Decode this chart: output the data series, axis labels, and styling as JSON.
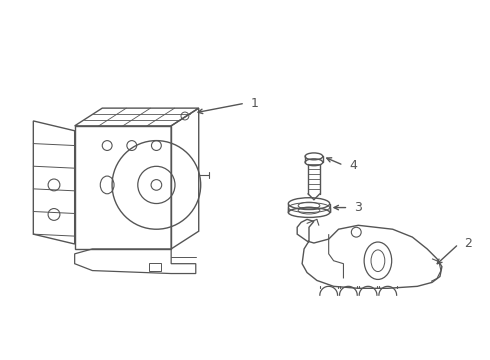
{
  "background_color": "#ffffff",
  "line_color": "#555555",
  "line_width": 1.0,
  "figsize": [
    4.9,
    3.6
  ],
  "dpi": 100,
  "arrow_color": "#555555"
}
